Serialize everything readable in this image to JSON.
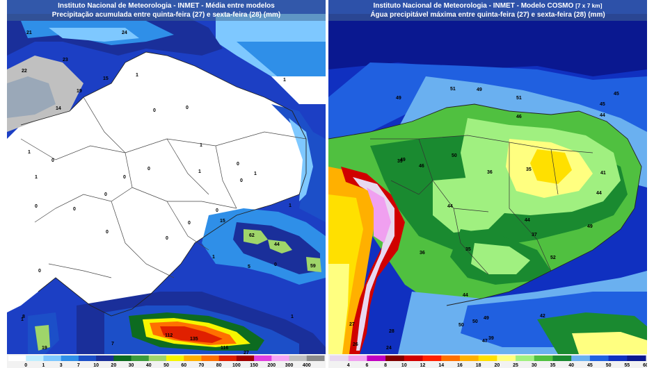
{
  "left_panel": {
    "title_line1": "Instituto Nacional de Meteorologia - INMET - Média entre modelos",
    "title_line2": "Precipitação acumulada entre quinta-feira (27) e sexta-feira (28) (mm)",
    "colorbar": {
      "ticks": [
        "0",
        "1",
        "3",
        "7",
        "10",
        "20",
        "30",
        "40",
        "50",
        "60",
        "70",
        "80",
        "100",
        "150",
        "200",
        "300",
        "400"
      ],
      "colors": [
        "#ffffff",
        "#bfefff",
        "#7ec8ff",
        "#2f8fe8",
        "#1c4fc8",
        "#1a2f9a",
        "#0d6b20",
        "#3c9c3c",
        "#9fd56a",
        "#f6f600",
        "#ffb000",
        "#ff7000",
        "#e02000",
        "#a00000",
        "#e040e0",
        "#f4a6f4",
        "#c0c0c0",
        "#8a8a8a"
      ]
    },
    "values": [
      "21",
      "24",
      "22",
      "23",
      "15",
      "19",
      "14",
      "1",
      "0",
      "0",
      "1",
      "1",
      "1",
      "0",
      "1",
      "0",
      "0",
      "0",
      "0",
      "0",
      "1",
      "0",
      "1",
      "0",
      "1",
      "0",
      "0",
      "0",
      "0",
      "0",
      "1",
      "1",
      "15",
      "62",
      "44",
      "59",
      "5",
      "0",
      "1",
      "8",
      "7",
      "19",
      "112",
      "135",
      "116",
      "27"
    ]
  },
  "right_panel": {
    "title_line1": "Instituto Nacional de Meteorologia - INMET - Modelo COSMO",
    "title_model_resolution": "[7 x 7 km]",
    "title_line2": "Água precipitável máxima entre quinta-feira (27) e sexta-feira (28) (mm)",
    "colorbar": {
      "ticks": [
        "4",
        "6",
        "8",
        "10",
        "12",
        "14",
        "16",
        "18",
        "20",
        "25",
        "30",
        "35",
        "40",
        "45",
        "50",
        "55",
        "60"
      ],
      "colors": [
        "#e8d8f0",
        "#f0a0f0",
        "#c000c0",
        "#800000",
        "#d00000",
        "#ff2000",
        "#ff7000",
        "#ffb000",
        "#ffe000",
        "#ffff80",
        "#a0f080",
        "#50c040",
        "#1a8a30",
        "#6ab0f0",
        "#2060e0",
        "#1030c0",
        "#0a1890"
      ]
    },
    "values": [
      "51",
      "51",
      "49",
      "45",
      "46",
      "45",
      "49",
      "44",
      "39",
      "49",
      "46",
      "50",
      "36",
      "35",
      "41",
      "44",
      "44",
      "44",
      "37",
      "35",
      "36",
      "52",
      "49",
      "44",
      "42",
      "50",
      "50",
      "49",
      "39",
      "27",
      "26",
      "28",
      "24",
      "47"
    ]
  }
}
